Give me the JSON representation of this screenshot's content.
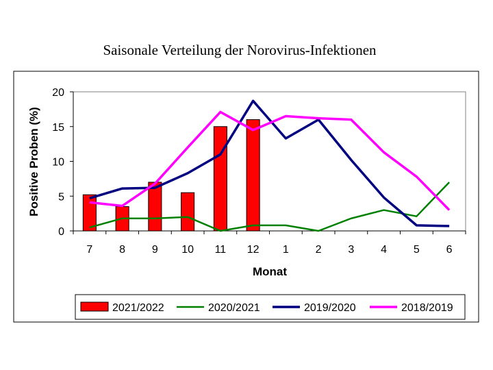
{
  "chart_data": {
    "type": "bar",
    "title": "Saisonale Verteilung der Norovirus-Infektionen",
    "xlabel": "Monat",
    "ylabel": "Positive Proben (%)",
    "categories": [
      "7",
      "8",
      "9",
      "10",
      "11",
      "12",
      "1",
      "2",
      "3",
      "4",
      "5",
      "6"
    ],
    "ylim": [
      0,
      20
    ],
    "yticks": [
      "0",
      "5",
      "10",
      "15",
      "20"
    ],
    "grid": false,
    "legend_position": "bottom",
    "series": [
      {
        "name": "2021/2022",
        "kind": "bar",
        "color": "#ff0000",
        "values": [
          5.2,
          3.5,
          7.0,
          5.5,
          15.0,
          16.0,
          null,
          null,
          null,
          null,
          null,
          null
        ]
      },
      {
        "name": "2020/2021",
        "kind": "line",
        "color": "#008000",
        "values": [
          0.5,
          1.8,
          1.8,
          2.0,
          0.0,
          0.8,
          0.8,
          0.0,
          1.8,
          3.0,
          2.1,
          7.0
        ]
      },
      {
        "name": "2019/2020",
        "kind": "line",
        "color": "#000080",
        "values": [
          4.7,
          6.1,
          6.2,
          8.3,
          11.0,
          18.7,
          13.3,
          16.0,
          10.2,
          4.8,
          0.8,
          0.7
        ]
      },
      {
        "name": "2018/2019",
        "kind": "line",
        "color": "#ff00ff",
        "values": [
          4.1,
          3.6,
          6.8,
          12.0,
          17.1,
          14.5,
          16.5,
          16.2,
          16.0,
          11.3,
          7.8,
          3.0
        ]
      }
    ]
  }
}
